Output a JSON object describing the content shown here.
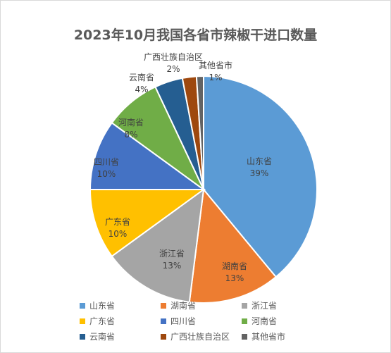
{
  "chart_data": {
    "type": "pie",
    "title": "2023年10月我国各省市辣椒干进口数量",
    "start_angle_deg": 0,
    "direction": "clockwise",
    "legend_position": "bottom",
    "slices": [
      {
        "name": "山东省",
        "label": "39%",
        "value": 39,
        "color": "#5B9BD5"
      },
      {
        "name": "湖南省",
        "label": "13%",
        "value": 13,
        "color": "#ED7D31"
      },
      {
        "name": "浙江省",
        "label": "13%",
        "value": 13,
        "color": "#A5A5A5"
      },
      {
        "name": "广东省",
        "label": "10%",
        "value": 10,
        "color": "#FFC000"
      },
      {
        "name": "四川省",
        "label": "10%",
        "value": 10,
        "color": "#4472C4"
      },
      {
        "name": "河南省",
        "label": "8%",
        "value": 8,
        "color": "#70AD47"
      },
      {
        "name": "云南省",
        "label": "4%",
        "value": 4,
        "color": "#255E91"
      },
      {
        "name": "广西壮族自治区",
        "label": "2%",
        "value": 2,
        "color": "#9E480E"
      },
      {
        "name": "其他省市",
        "label": "1%",
        "value": 1,
        "color": "#636363"
      }
    ]
  }
}
